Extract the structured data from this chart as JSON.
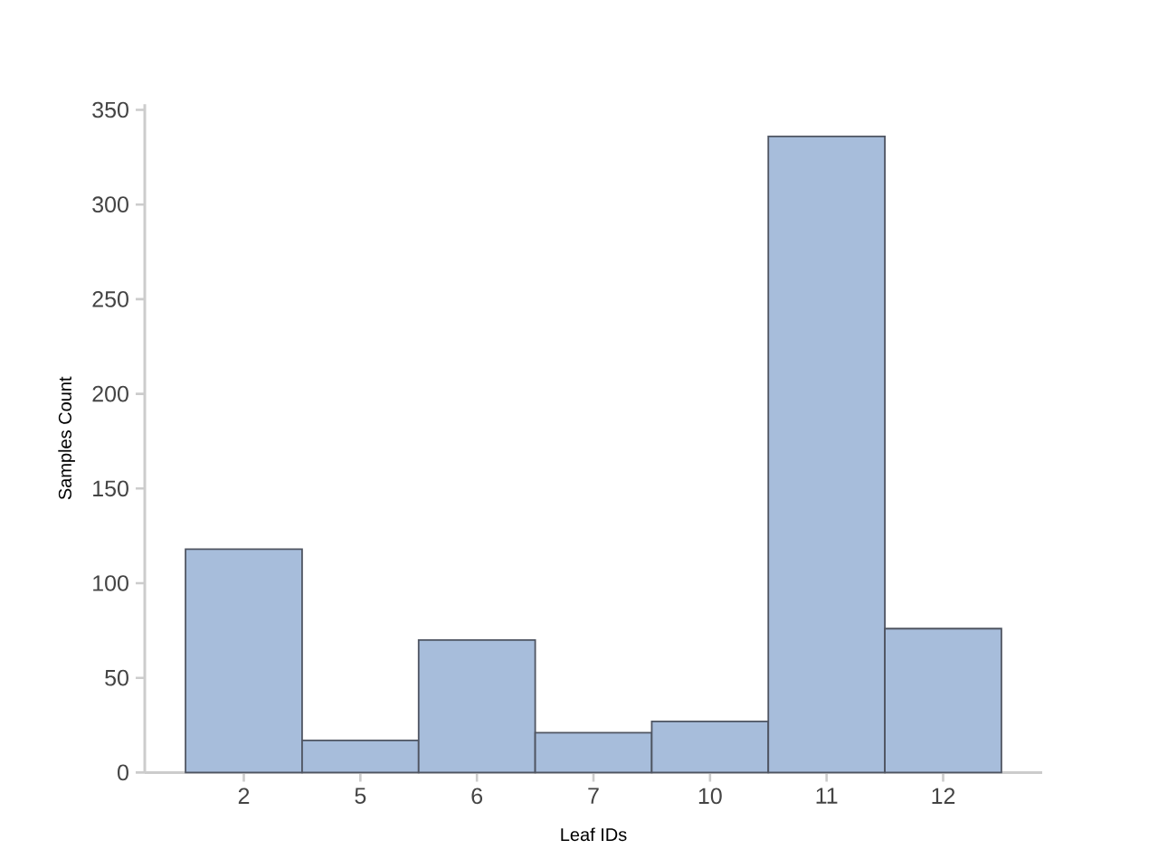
{
  "chart_data": {
    "type": "bar",
    "xlabel": "Leaf IDs",
    "ylabel": "Samples Count",
    "categories": [
      "2",
      "5",
      "6",
      "7",
      "10",
      "11",
      "12"
    ],
    "values": [
      118,
      17,
      70,
      21,
      27,
      336,
      76
    ],
    "color": "#a7bddb",
    "ylim": [
      0,
      353
    ],
    "yticks": [
      0,
      50,
      100,
      150,
      200,
      250,
      300,
      350
    ]
  }
}
